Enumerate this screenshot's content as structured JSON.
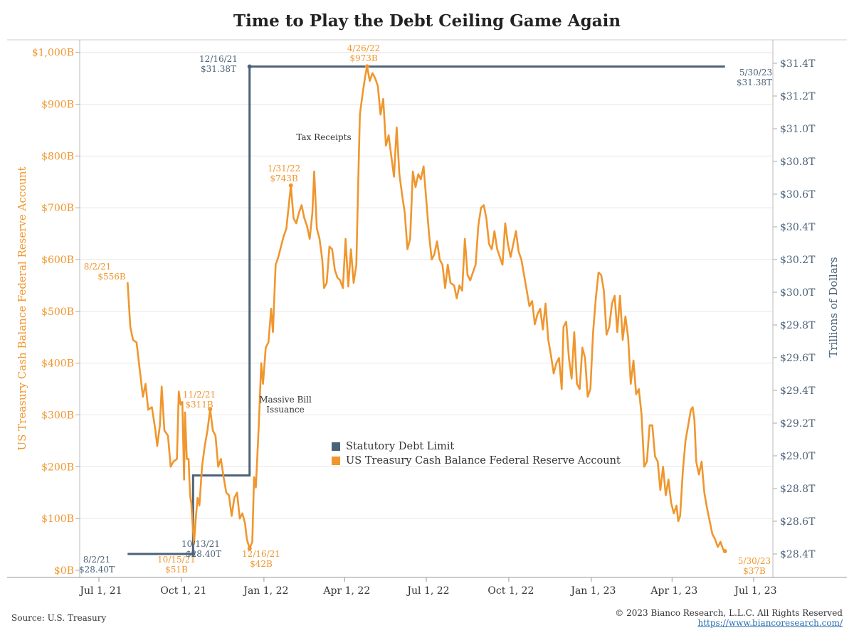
{
  "colors": {
    "debt_limit": "#4c6278",
    "cash_balance": "#f0962e",
    "grid": "#e6e6e6",
    "axis": "#999999"
  },
  "footer": {
    "source": "Source: U.S. Treasury",
    "copyright": "© 2023 Bianco Research, L.L.C. All Rights Reserved",
    "url": "https://www.biancoresearch.com/"
  },
  "chart_data": {
    "type": "line",
    "title": "Time to Play the Debt Ceiling Game Again",
    "y_left_label": "US Treasury Cash Balance Federal Reserve Account",
    "y_right_label": "Trillions of Dollars",
    "x_ticks": [
      "Jul 1, 21",
      "Oct 1, 21",
      "Jan 1, 22",
      "Apr 1, 22",
      "Jul 1, 22",
      "Oct 1, 22",
      "Jan 1, 23",
      "Apr 1, 23",
      "Jul 1, 23"
    ],
    "y_left_ticks": [
      "$0B",
      "$100B",
      "$200B",
      "$300B",
      "$400B",
      "$500B",
      "$600B",
      "$700B",
      "$800B",
      "$900B",
      "$1,000B"
    ],
    "y_right_ticks": [
      "$28.4T",
      "$28.6T",
      "$28.8T",
      "$29.0T",
      "$29.2T",
      "$29.4T",
      "$29.6T",
      "$29.8T",
      "$30.0T",
      "$30.2T",
      "$30.4T",
      "$30.6T",
      "$30.8T",
      "$31.0T",
      "$31.2T",
      "$31.4T"
    ],
    "y_left_range": [
      0,
      1000
    ],
    "y_right_range": [
      28.3,
      31.4
    ],
    "x_range": [
      "2021-07-01",
      "2023-07-01"
    ],
    "grid": true,
    "legend_position": "center",
    "series": [
      {
        "name": "Statutory Debt Limit",
        "axis": "right",
        "step": true,
        "points": [
          [
            "2021-08-02",
            28.4
          ],
          [
            "2021-10-14",
            28.4
          ],
          [
            "2021-10-14",
            28.88
          ],
          [
            "2021-12-16",
            28.88
          ],
          [
            "2021-12-16",
            31.38
          ],
          [
            "2023-05-30",
            31.38
          ]
        ]
      },
      {
        "name": "US Treasury Cash Balance Federal Reserve Account",
        "axis": "left",
        "points": [
          [
            "2021-08-02",
            556
          ],
          [
            "2021-08-05",
            470
          ],
          [
            "2021-08-08",
            445
          ],
          [
            "2021-08-12",
            440
          ],
          [
            "2021-08-16",
            380
          ],
          [
            "2021-08-19",
            335
          ],
          [
            "2021-08-22",
            360
          ],
          [
            "2021-08-25",
            310
          ],
          [
            "2021-08-29",
            315
          ],
          [
            "2021-09-02",
            270
          ],
          [
            "2021-09-04",
            240
          ],
          [
            "2021-09-07",
            280
          ],
          [
            "2021-09-09",
            355
          ],
          [
            "2021-09-12",
            270
          ],
          [
            "2021-09-16",
            260
          ],
          [
            "2021-09-19",
            200
          ],
          [
            "2021-09-22",
            210
          ],
          [
            "2021-09-26",
            215
          ],
          [
            "2021-09-28",
            345
          ],
          [
            "2021-09-30",
            320
          ],
          [
            "2021-10-02",
            325
          ],
          [
            "2021-10-04",
            175
          ],
          [
            "2021-10-05",
            305
          ],
          [
            "2021-10-07",
            215
          ],
          [
            "2021-10-09",
            215
          ],
          [
            "2021-10-10",
            170
          ],
          [
            "2021-10-11",
            140
          ],
          [
            "2021-10-12",
            130
          ],
          [
            "2021-10-13",
            100
          ],
          [
            "2021-10-15",
            51
          ],
          [
            "2021-10-17",
            100
          ],
          [
            "2021-10-19",
            140
          ],
          [
            "2021-10-21",
            125
          ],
          [
            "2021-10-24",
            200
          ],
          [
            "2021-10-27",
            240
          ],
          [
            "2021-10-30",
            270
          ],
          [
            "2021-11-02",
            311
          ],
          [
            "2021-11-05",
            270
          ],
          [
            "2021-11-08",
            260
          ],
          [
            "2021-11-11",
            200
          ],
          [
            "2021-11-14",
            215
          ],
          [
            "2021-11-17",
            180
          ],
          [
            "2021-11-20",
            150
          ],
          [
            "2021-11-23",
            145
          ],
          [
            "2021-11-26",
            105
          ],
          [
            "2021-11-29",
            140
          ],
          [
            "2021-12-02",
            150
          ],
          [
            "2021-12-05",
            100
          ],
          [
            "2021-12-08",
            110
          ],
          [
            "2021-12-11",
            90
          ],
          [
            "2021-12-13",
            60
          ],
          [
            "2021-12-16",
            42
          ],
          [
            "2021-12-19",
            55
          ],
          [
            "2021-12-21",
            180
          ],
          [
            "2021-12-23",
            160
          ],
          [
            "2021-12-26",
            270
          ],
          [
            "2021-12-29",
            400
          ],
          [
            "2021-12-31",
            360
          ],
          [
            "2022-01-03",
            430
          ],
          [
            "2022-01-06",
            440
          ],
          [
            "2022-01-09",
            505
          ],
          [
            "2022-01-11",
            460
          ],
          [
            "2022-01-14",
            590
          ],
          [
            "2022-01-17",
            605
          ],
          [
            "2022-01-20",
            625
          ],
          [
            "2022-01-23",
            645
          ],
          [
            "2022-01-26",
            660
          ],
          [
            "2022-01-31",
            743
          ],
          [
            "2022-02-03",
            680
          ],
          [
            "2022-02-06",
            670
          ],
          [
            "2022-02-09",
            690
          ],
          [
            "2022-02-12",
            705
          ],
          [
            "2022-02-15",
            680
          ],
          [
            "2022-02-18",
            665
          ],
          [
            "2022-02-21",
            640
          ],
          [
            "2022-02-24",
            690
          ],
          [
            "2022-02-26",
            770
          ],
          [
            "2022-03-01",
            660
          ],
          [
            "2022-03-04",
            640
          ],
          [
            "2022-03-07",
            600
          ],
          [
            "2022-03-09",
            545
          ],
          [
            "2022-03-12",
            555
          ],
          [
            "2022-03-15",
            625
          ],
          [
            "2022-03-18",
            620
          ],
          [
            "2022-03-21",
            580
          ],
          [
            "2022-03-24",
            565
          ],
          [
            "2022-03-27",
            560
          ],
          [
            "2022-03-30",
            545
          ],
          [
            "2022-04-02",
            640
          ],
          [
            "2022-04-05",
            548
          ],
          [
            "2022-04-08",
            620
          ],
          [
            "2022-04-11",
            555
          ],
          [
            "2022-04-14",
            590
          ],
          [
            "2022-04-16",
            740
          ],
          [
            "2022-04-18",
            880
          ],
          [
            "2022-04-21",
            920
          ],
          [
            "2022-04-24",
            955
          ],
          [
            "2022-04-26",
            973
          ],
          [
            "2022-04-29",
            945
          ],
          [
            "2022-05-02",
            960
          ],
          [
            "2022-05-05",
            950
          ],
          [
            "2022-05-08",
            935
          ],
          [
            "2022-05-11",
            880
          ],
          [
            "2022-05-14",
            910
          ],
          [
            "2022-05-17",
            820
          ],
          [
            "2022-05-20",
            840
          ],
          [
            "2022-05-23",
            800
          ],
          [
            "2022-05-26",
            760
          ],
          [
            "2022-05-29",
            855
          ],
          [
            "2022-06-01",
            765
          ],
          [
            "2022-06-04",
            725
          ],
          [
            "2022-06-07",
            690
          ],
          [
            "2022-06-10",
            620
          ],
          [
            "2022-06-13",
            640
          ],
          [
            "2022-06-16",
            770
          ],
          [
            "2022-06-19",
            740
          ],
          [
            "2022-06-22",
            765
          ],
          [
            "2022-06-25",
            755
          ],
          [
            "2022-06-28",
            780
          ],
          [
            "2022-07-01",
            715
          ],
          [
            "2022-07-04",
            650
          ],
          [
            "2022-07-07",
            600
          ],
          [
            "2022-07-10",
            610
          ],
          [
            "2022-07-13",
            635
          ],
          [
            "2022-07-16",
            600
          ],
          [
            "2022-07-19",
            590
          ],
          [
            "2022-07-22",
            545
          ],
          [
            "2022-07-25",
            590
          ],
          [
            "2022-07-28",
            555
          ],
          [
            "2022-08-01",
            550
          ],
          [
            "2022-08-04",
            525
          ],
          [
            "2022-08-07",
            550
          ],
          [
            "2022-08-10",
            540
          ],
          [
            "2022-08-13",
            640
          ],
          [
            "2022-08-16",
            570
          ],
          [
            "2022-08-19",
            560
          ],
          [
            "2022-08-22",
            575
          ],
          [
            "2022-08-25",
            590
          ],
          [
            "2022-08-28",
            665
          ],
          [
            "2022-08-31",
            700
          ],
          [
            "2022-09-03",
            705
          ],
          [
            "2022-09-06",
            680
          ],
          [
            "2022-09-09",
            630
          ],
          [
            "2022-09-12",
            620
          ],
          [
            "2022-09-15",
            655
          ],
          [
            "2022-09-18",
            620
          ],
          [
            "2022-09-21",
            605
          ],
          [
            "2022-09-24",
            590
          ],
          [
            "2022-09-27",
            670
          ],
          [
            "2022-09-30",
            630
          ],
          [
            "2022-10-03",
            605
          ],
          [
            "2022-10-06",
            630
          ],
          [
            "2022-10-09",
            655
          ],
          [
            "2022-10-12",
            615
          ],
          [
            "2022-10-15",
            600
          ],
          [
            "2022-10-18",
            570
          ],
          [
            "2022-10-21",
            540
          ],
          [
            "2022-10-24",
            510
          ],
          [
            "2022-10-27",
            520
          ],
          [
            "2022-10-30",
            475
          ],
          [
            "2022-11-02",
            495
          ],
          [
            "2022-11-05",
            505
          ],
          [
            "2022-11-08",
            465
          ],
          [
            "2022-11-11",
            515
          ],
          [
            "2022-11-14",
            445
          ],
          [
            "2022-11-17",
            415
          ],
          [
            "2022-11-20",
            380
          ],
          [
            "2022-11-23",
            400
          ],
          [
            "2022-11-26",
            410
          ],
          [
            "2022-11-29",
            350
          ],
          [
            "2022-12-01",
            470
          ],
          [
            "2022-12-04",
            480
          ],
          [
            "2022-12-07",
            410
          ],
          [
            "2022-12-10",
            370
          ],
          [
            "2022-12-13",
            460
          ],
          [
            "2022-12-16",
            360
          ],
          [
            "2022-12-19",
            350
          ],
          [
            "2022-12-22",
            430
          ],
          [
            "2022-12-25",
            410
          ],
          [
            "2022-12-28",
            335
          ],
          [
            "2022-12-31",
            350
          ],
          [
            "2023-01-03",
            460
          ],
          [
            "2023-01-06",
            525
          ],
          [
            "2023-01-09",
            575
          ],
          [
            "2023-01-12",
            570
          ],
          [
            "2023-01-15",
            540
          ],
          [
            "2023-01-18",
            455
          ],
          [
            "2023-01-21",
            470
          ],
          [
            "2023-01-24",
            515
          ],
          [
            "2023-01-27",
            530
          ],
          [
            "2023-01-30",
            460
          ],
          [
            "2023-02-02",
            530
          ],
          [
            "2023-02-05",
            445
          ],
          [
            "2023-02-08",
            490
          ],
          [
            "2023-02-11",
            450
          ],
          [
            "2023-02-14",
            360
          ],
          [
            "2023-02-17",
            405
          ],
          [
            "2023-02-20",
            340
          ],
          [
            "2023-02-23",
            350
          ],
          [
            "2023-02-26",
            300
          ],
          [
            "2023-03-01",
            200
          ],
          [
            "2023-03-04",
            210
          ],
          [
            "2023-03-07",
            280
          ],
          [
            "2023-03-10",
            280
          ],
          [
            "2023-03-13",
            220
          ],
          [
            "2023-03-16",
            210
          ],
          [
            "2023-03-19",
            155
          ],
          [
            "2023-03-22",
            200
          ],
          [
            "2023-03-25",
            145
          ],
          [
            "2023-03-28",
            175
          ],
          [
            "2023-03-31",
            130
          ],
          [
            "2023-04-03",
            110
          ],
          [
            "2023-04-06",
            125
          ],
          [
            "2023-04-08",
            95
          ],
          [
            "2023-04-10",
            105
          ],
          [
            "2023-04-13",
            190
          ],
          [
            "2023-04-16",
            250
          ],
          [
            "2023-04-19",
            280
          ],
          [
            "2023-04-22",
            310
          ],
          [
            "2023-04-24",
            315
          ],
          [
            "2023-04-26",
            290
          ],
          [
            "2023-04-28",
            210
          ],
          [
            "2023-05-01",
            185
          ],
          [
            "2023-05-04",
            210
          ],
          [
            "2023-05-07",
            150
          ],
          [
            "2023-05-10",
            120
          ],
          [
            "2023-05-13",
            95
          ],
          [
            "2023-05-16",
            70
          ],
          [
            "2023-05-19",
            60
          ],
          [
            "2023-05-22",
            45
          ],
          [
            "2023-05-25",
            55
          ],
          [
            "2023-05-28",
            40
          ],
          [
            "2023-05-30",
            37
          ]
        ]
      }
    ],
    "annotations": [
      {
        "label": "8/2/21",
        "value": "$556B",
        "series": "cash"
      },
      {
        "label": "10/15/21",
        "value": "$51B",
        "series": "cash"
      },
      {
        "label": "11/2/21",
        "value": "$311B",
        "series": "cash"
      },
      {
        "label": "12/16/21",
        "value": "$42B",
        "series": "cash"
      },
      {
        "label": "1/31/22",
        "value": "$743B",
        "series": "cash"
      },
      {
        "label": "4/26/22",
        "value": "$973B",
        "series": "cash"
      },
      {
        "label": "5/30/23",
        "value": "$37B",
        "series": "cash"
      },
      {
        "label": "8/2/21",
        "value": "$28.40T",
        "series": "debt"
      },
      {
        "label": "10/13/21",
        "value": "$28.40T",
        "series": "debt"
      },
      {
        "label": "12/16/21",
        "value": "$31.38T",
        "series": "debt"
      },
      {
        "label": "5/30/23",
        "value": "$31.38T",
        "series": "debt"
      }
    ],
    "text_notes": [
      "Tax Receipts",
      "Massive Bill",
      "Issuance"
    ]
  }
}
